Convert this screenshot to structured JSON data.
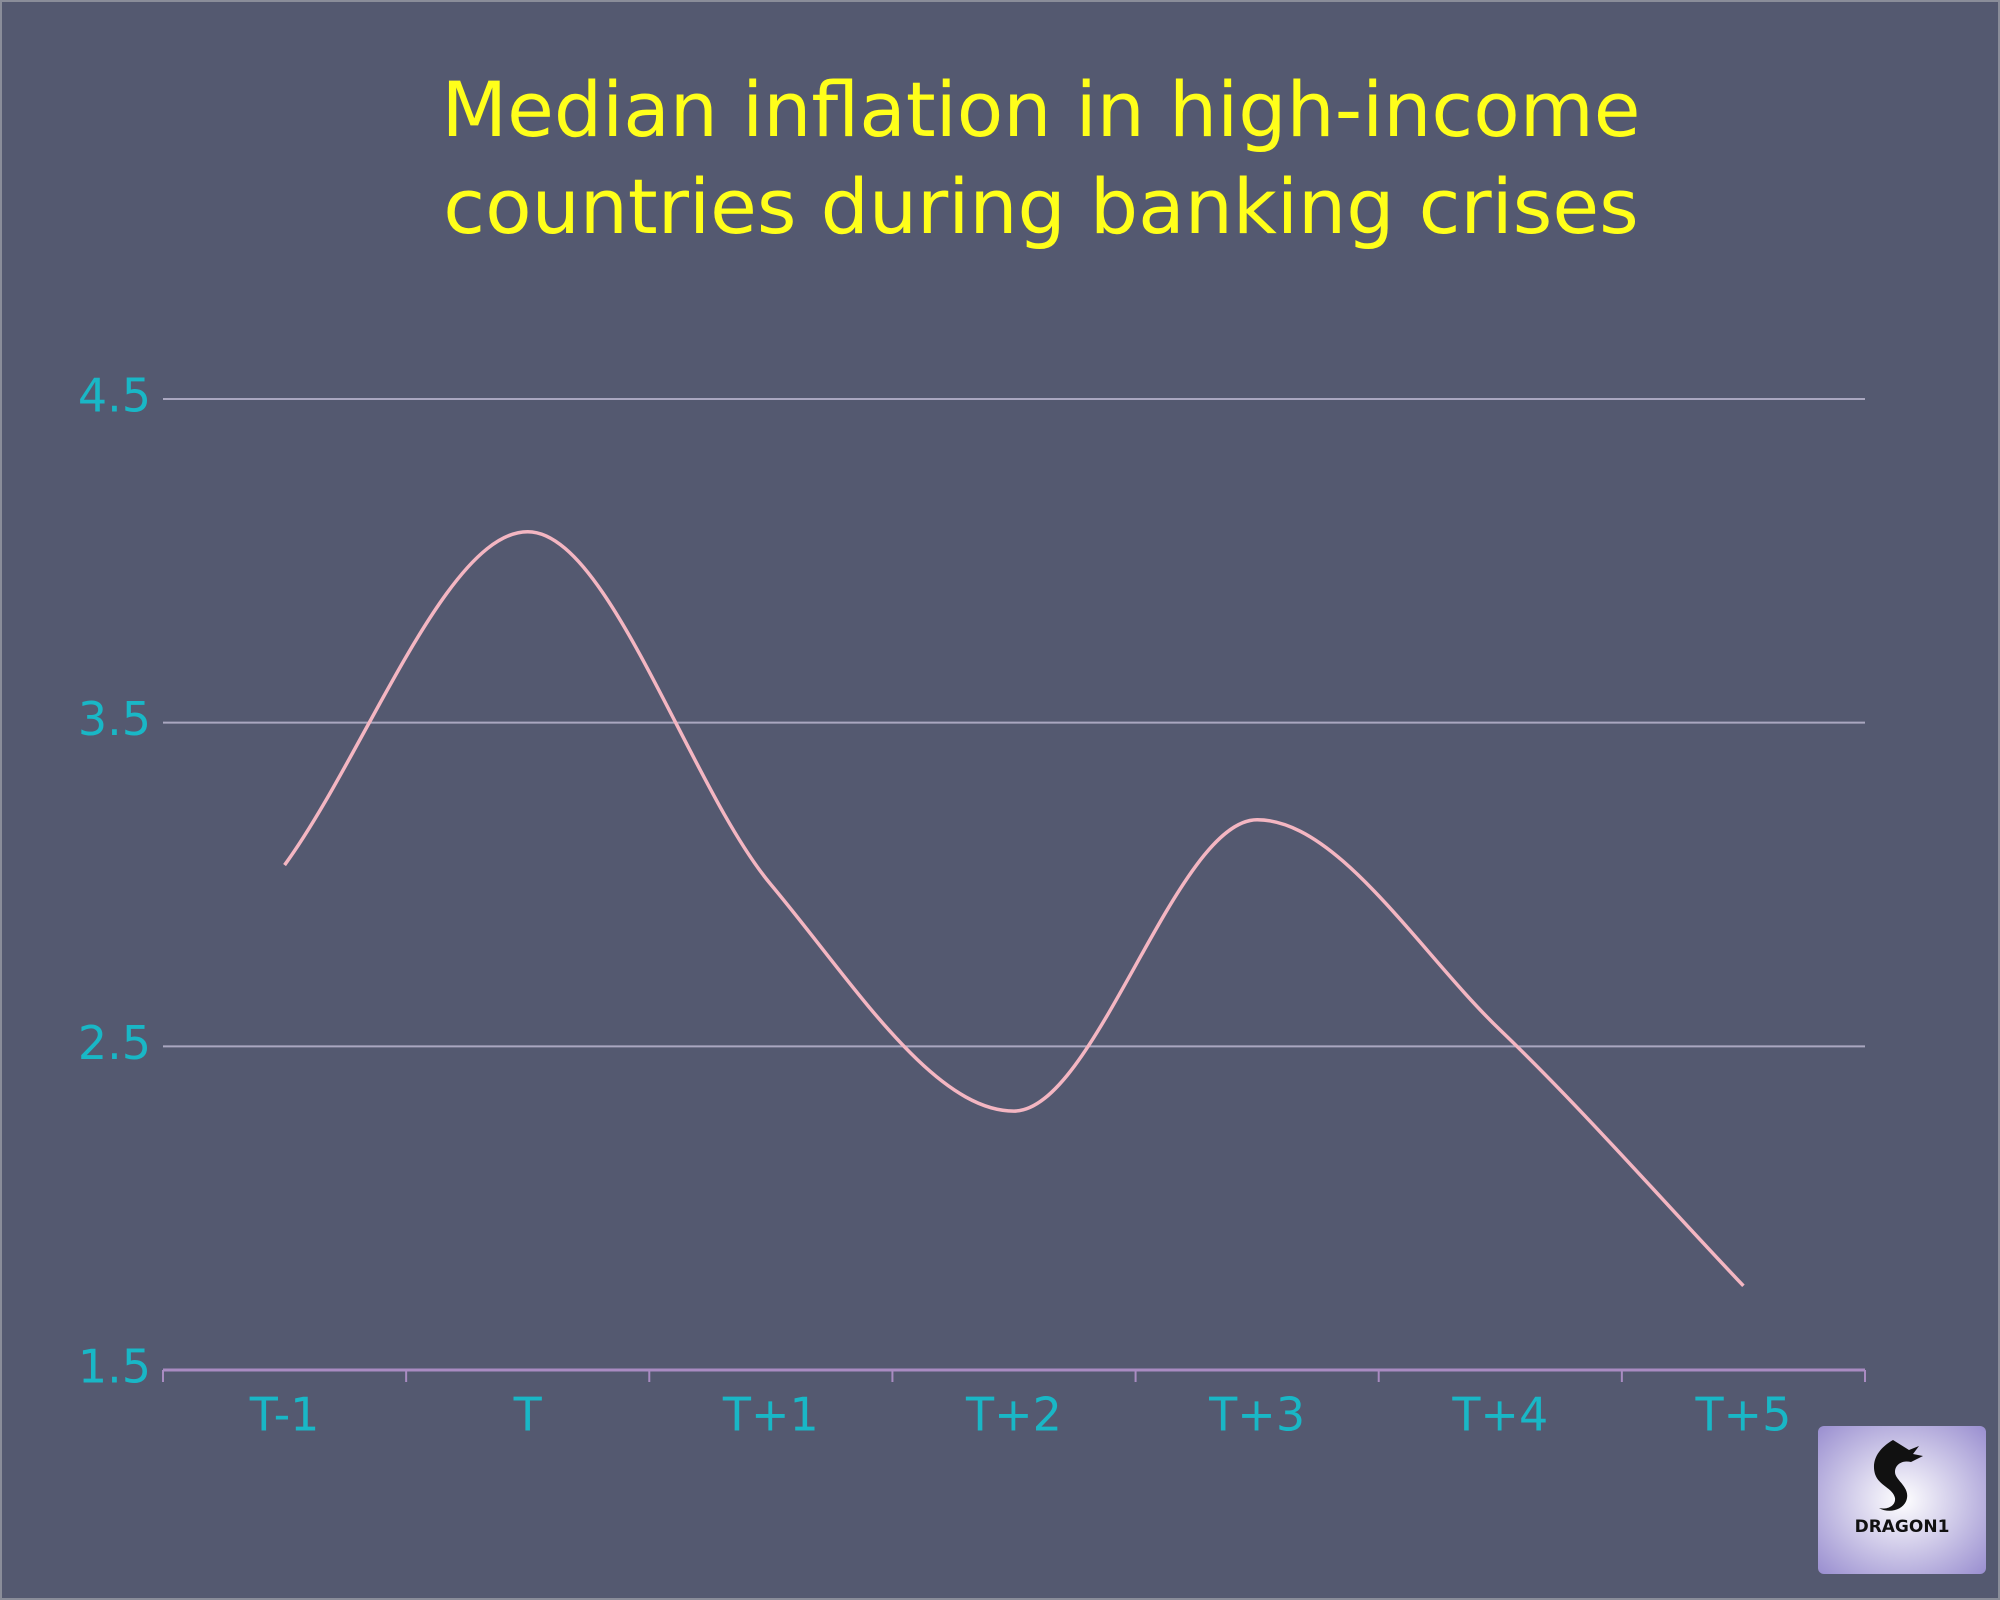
{
  "chart_data": {
    "type": "line",
    "title": [
      "Median inflation in high-income",
      "countries during banking crises"
    ],
    "categories": [
      "T-1",
      "T",
      "T+1",
      "T+2",
      "T+3",
      "T+4",
      "T+5"
    ],
    "values": [
      3.06,
      4.09,
      3.0,
      2.3,
      3.2,
      2.55,
      1.76
    ],
    "color": "#f4b6c2",
    "ylim": [
      1.5,
      4.5
    ],
    "yticks": [
      1.5,
      2.5,
      3.5,
      4.5
    ],
    "grid": true,
    "smooth": true,
    "watermark": "DRAGON1"
  }
}
